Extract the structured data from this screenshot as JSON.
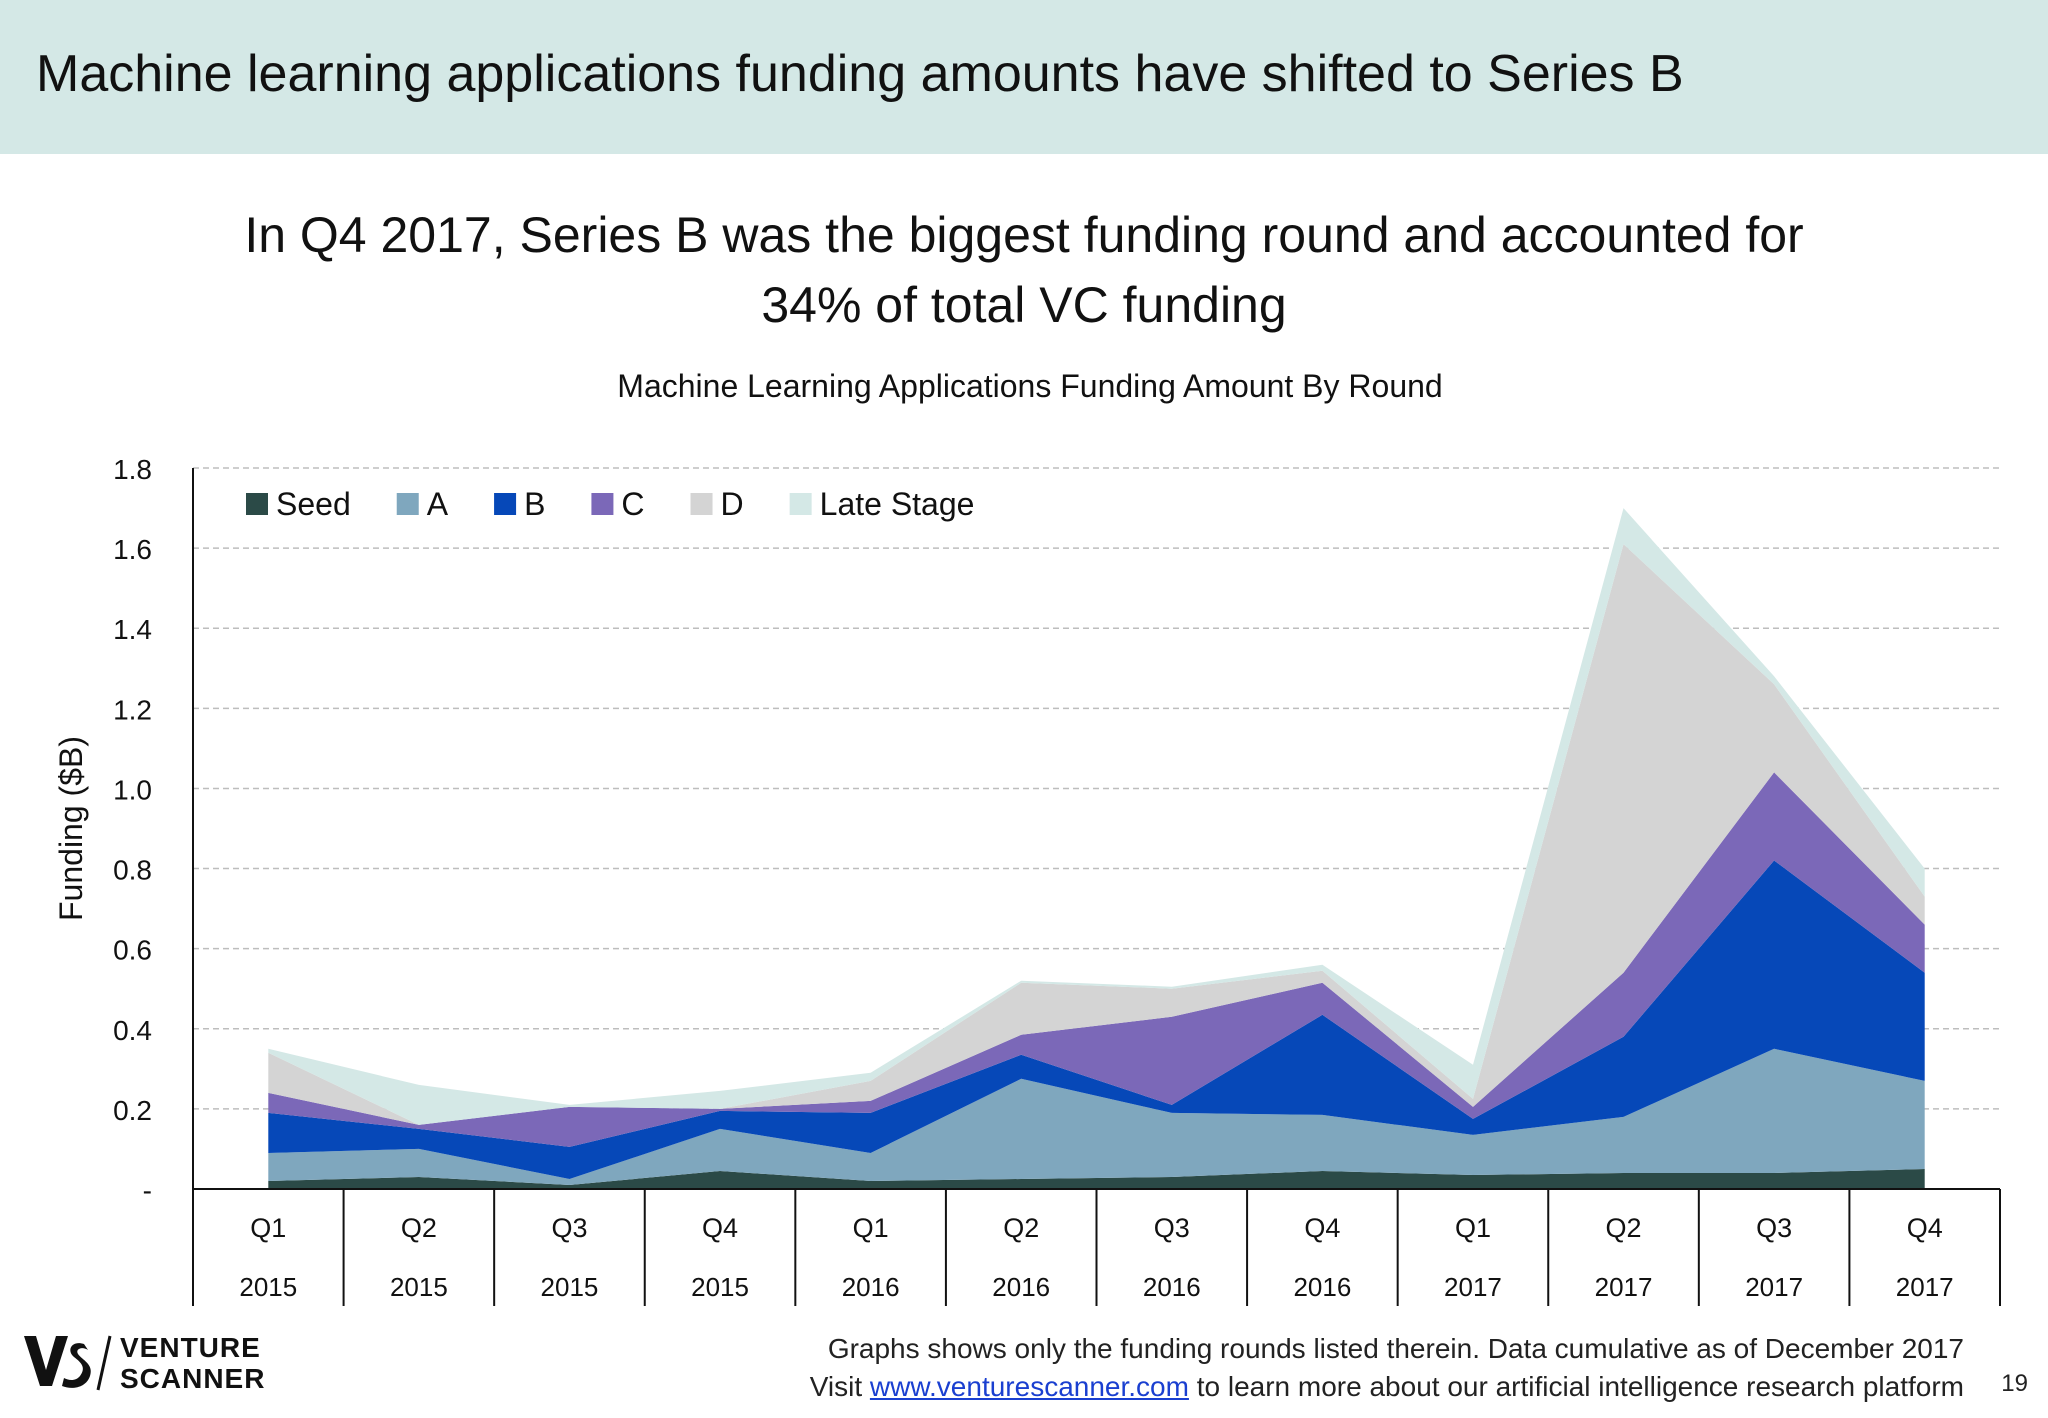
{
  "header": {
    "title": "Machine learning applications funding amounts have shifted to Series B"
  },
  "headline": {
    "line1": "In Q4 2017, Series B was the biggest funding round and accounted for",
    "line2": "34% of total VC funding"
  },
  "chart_data": {
    "type": "area",
    "stacked": true,
    "title": "Machine Learning Applications Funding Amount By Round",
    "ylabel": "Funding ($B)",
    "xlabel": "",
    "ylim": [
      0,
      1.8
    ],
    "yticks": [
      0,
      0.2,
      0.4,
      0.6,
      0.8,
      1.0,
      1.2,
      1.4,
      1.6,
      1.8
    ],
    "ytick_labels": [
      "-",
      "0.2",
      "0.4",
      "0.6",
      "0.8",
      "1.0",
      "1.2",
      "1.4",
      "1.6",
      "1.8"
    ],
    "grid": true,
    "legend_position": "top-left",
    "categories": [
      {
        "quarter": "Q1",
        "year": "2015"
      },
      {
        "quarter": "Q2",
        "year": "2015"
      },
      {
        "quarter": "Q3",
        "year": "2015"
      },
      {
        "quarter": "Q4",
        "year": "2015"
      },
      {
        "quarter": "Q1",
        "year": "2016"
      },
      {
        "quarter": "Q2",
        "year": "2016"
      },
      {
        "quarter": "Q3",
        "year": "2016"
      },
      {
        "quarter": "Q4",
        "year": "2016"
      },
      {
        "quarter": "Q1",
        "year": "2017"
      },
      {
        "quarter": "Q2",
        "year": "2017"
      },
      {
        "quarter": "Q3",
        "year": "2017"
      },
      {
        "quarter": "Q4",
        "year": "2017"
      }
    ],
    "series": [
      {
        "name": "Seed",
        "color": "#2b4a47",
        "values": [
          0.02,
          0.03,
          0.01,
          0.045,
          0.02,
          0.025,
          0.03,
          0.045,
          0.035,
          0.04,
          0.04,
          0.05
        ]
      },
      {
        "name": "A",
        "color": "#7fa7be",
        "values": [
          0.07,
          0.07,
          0.015,
          0.105,
          0.07,
          0.25,
          0.16,
          0.14,
          0.1,
          0.14,
          0.31,
          0.22
        ]
      },
      {
        "name": "B",
        "color": "#0648b8",
        "values": [
          0.1,
          0.05,
          0.08,
          0.045,
          0.1,
          0.06,
          0.02,
          0.25,
          0.04,
          0.2,
          0.47,
          0.27
        ]
      },
      {
        "name": "C",
        "color": "#7b68b8",
        "values": [
          0.05,
          0.01,
          0.1,
          0.005,
          0.03,
          0.05,
          0.22,
          0.08,
          0.03,
          0.16,
          0.22,
          0.12
        ]
      },
      {
        "name": "D",
        "color": "#d4d4d4",
        "values": [
          0.1,
          0.0,
          0.0,
          0.0,
          0.05,
          0.13,
          0.07,
          0.03,
          0.02,
          1.07,
          0.22,
          0.07
        ]
      },
      {
        "name": "Late Stage",
        "color": "#d4e8e6",
        "values": [
          0.01,
          0.1,
          0.005,
          0.045,
          0.02,
          0.005,
          0.005,
          0.015,
          0.085,
          0.09,
          0.02,
          0.07
        ]
      }
    ]
  },
  "footer": {
    "note": "Graphs shows only the funding rounds listed therein. Data cumulative as of December 2017",
    "visit_prefix": "Visit",
    "link_text": "www.venturescanner.com",
    "visit_suffix": "to learn more about our artificial intelligence research platform",
    "page_number": "19"
  },
  "logo": {
    "word1": "VENTURE",
    "word2": "SCANNER",
    "icon": "venture-scanner-vs-logo"
  }
}
